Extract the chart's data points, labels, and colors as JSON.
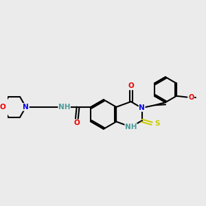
{
  "bg_color": "#ebebeb",
  "bond_color": "#000000",
  "line_width": 1.5,
  "atom_colors": {
    "N": "#0000ee",
    "O": "#ee0000",
    "S": "#cccc00",
    "NH": "#4a9a9a",
    "C": "#000000"
  },
  "font_size": 7.0
}
